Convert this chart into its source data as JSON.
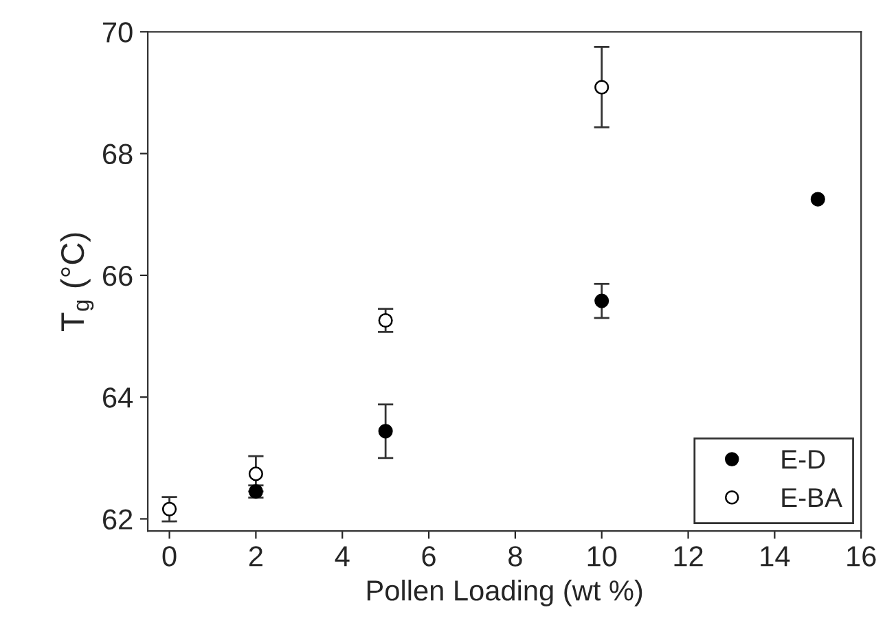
{
  "chart_data": {
    "type": "scatter",
    "xlabel": "Pollen Loading (wt %)",
    "ylabel": "T$_{g}$ (°C)",
    "xlim": [
      -0.5,
      16
    ],
    "ylim": [
      61.8,
      70
    ],
    "xticks": [
      0,
      2,
      4,
      6,
      8,
      10,
      12,
      14,
      16
    ],
    "yticks": [
      62,
      64,
      66,
      68,
      70
    ],
    "grid": false,
    "legend": "bottom right",
    "marker": "circle",
    "series": [
      {
        "name": "E-D",
        "color": "#000000",
        "x": [
          2,
          5,
          10,
          15
        ],
        "values": [
          62.45,
          63.44,
          65.58,
          67.25
        ],
        "errors": [
          0.1,
          0.44,
          0.28,
          null
        ]
      },
      {
        "name": "E-BA",
        "color": "#ffffff",
        "x": [
          0,
          2,
          5,
          10
        ],
        "values": [
          62.16,
          62.74,
          65.26,
          69.09
        ],
        "errors": [
          0.2,
          0.29,
          0.19,
          0.66
        ]
      }
    ]
  }
}
